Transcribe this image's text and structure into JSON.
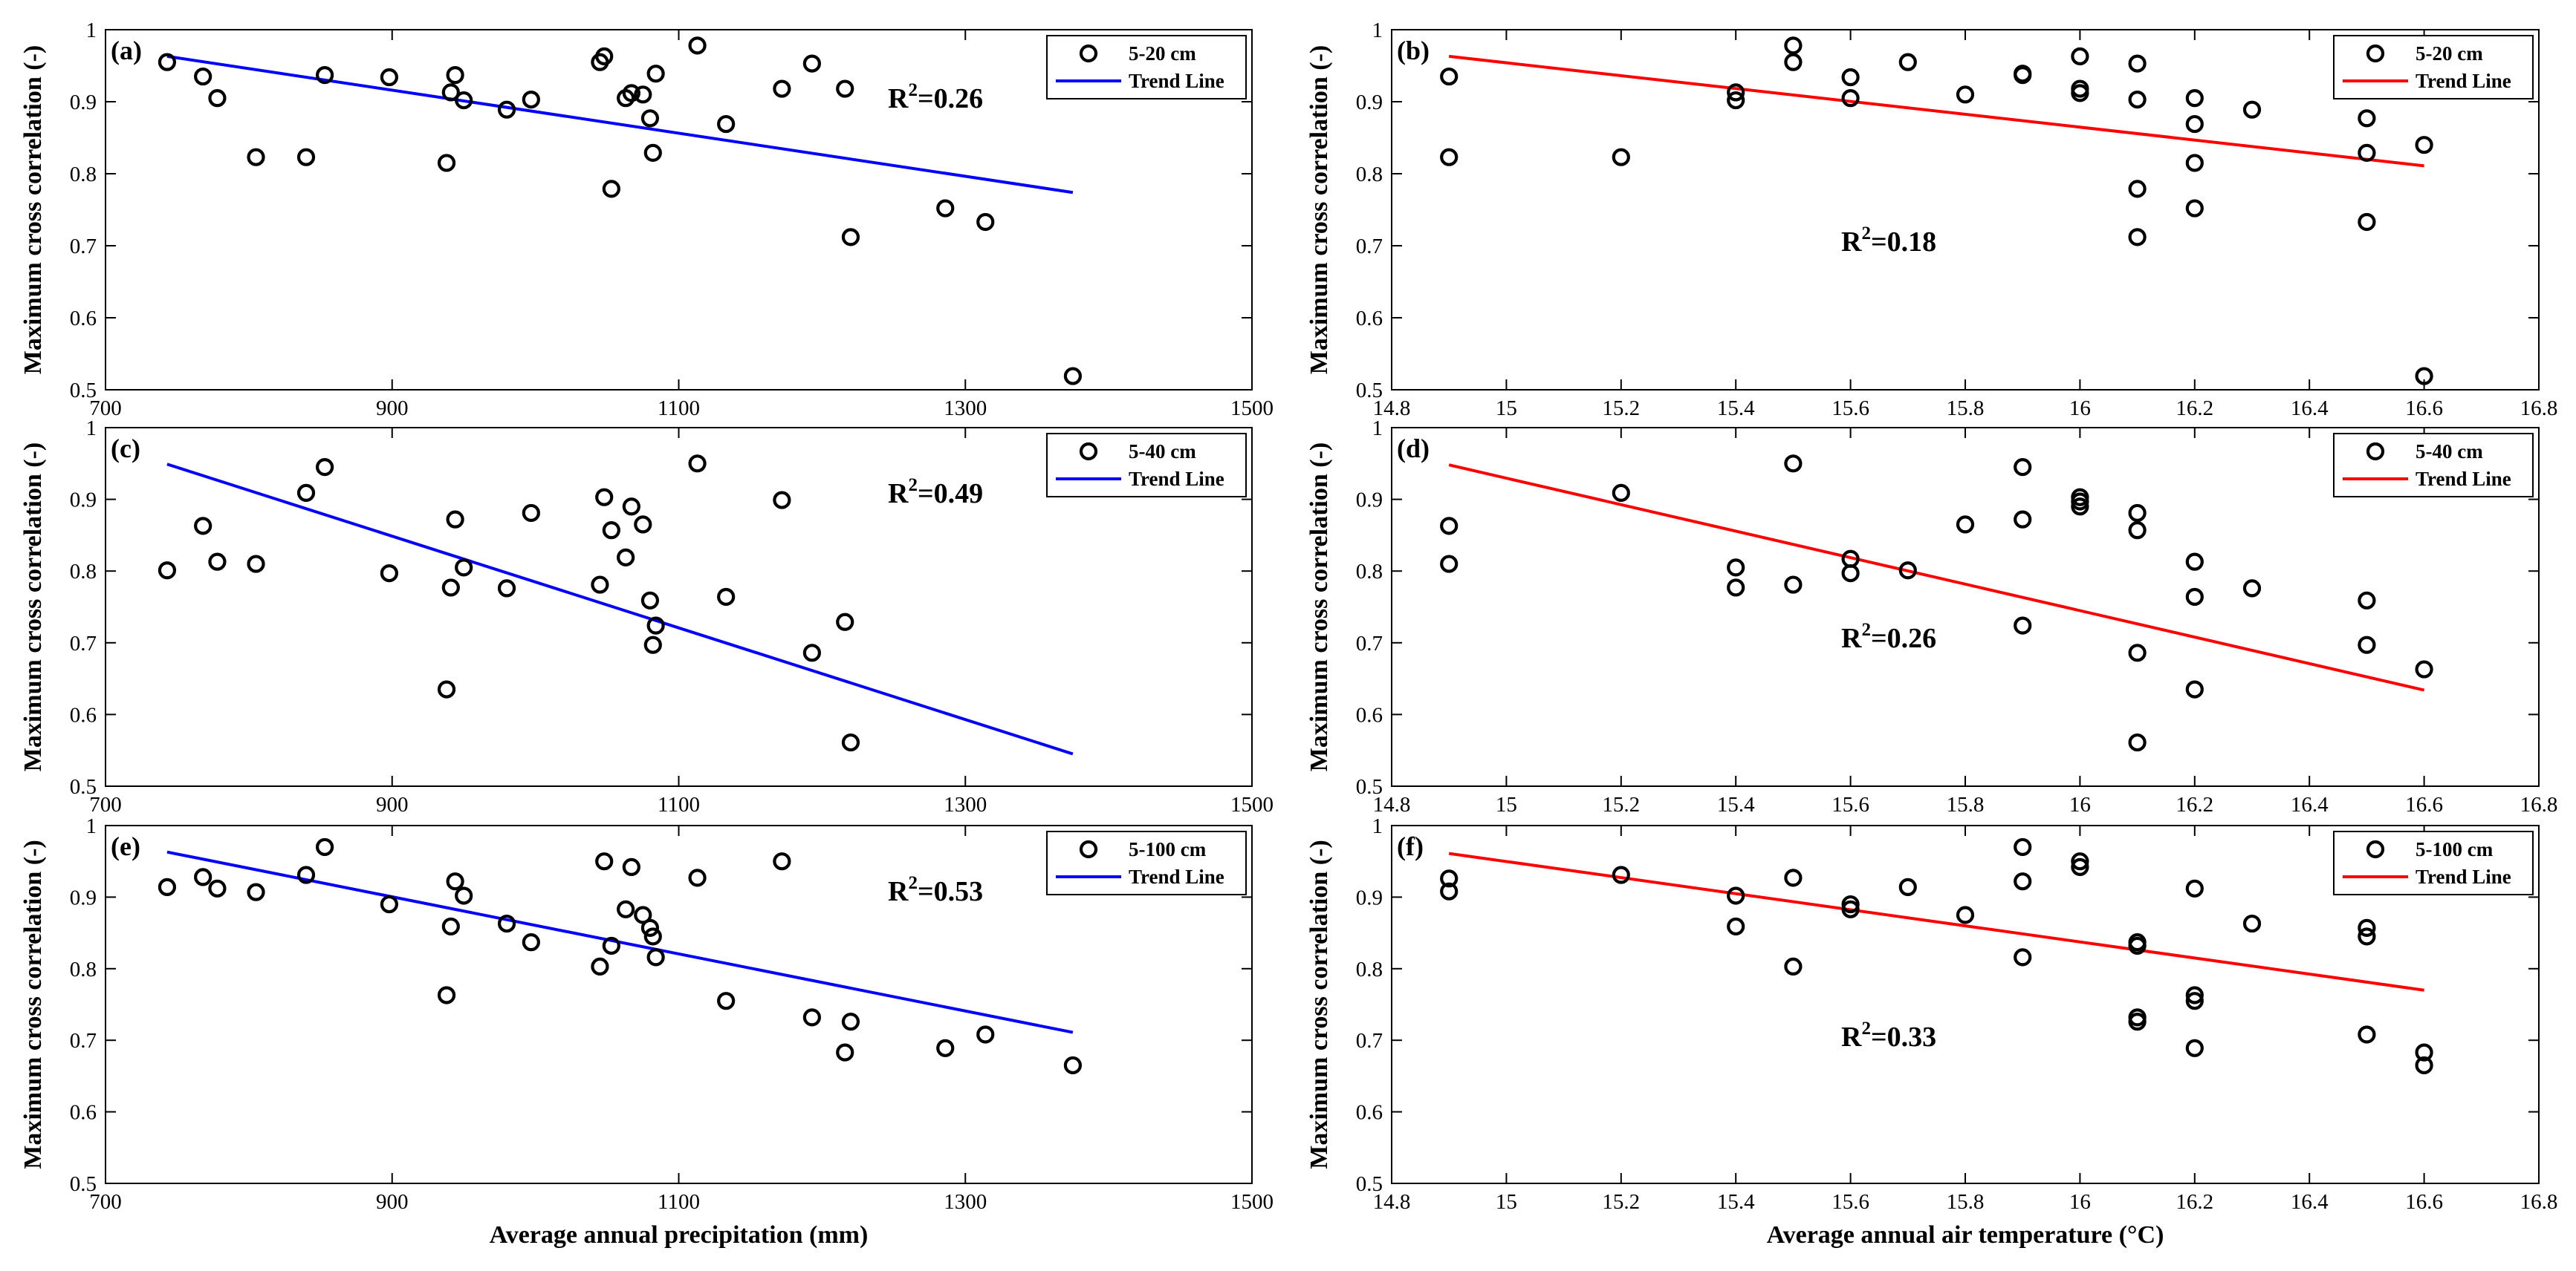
{
  "chart_data": [
    {
      "type": "scatter",
      "panel_label": "(a)",
      "xlabel": "",
      "ylabel": "Maximum cross correlation (-)",
      "xlim": [
        700,
        1500
      ],
      "ylim": [
        0.5,
        1
      ],
      "xticks": [
        "700",
        "900",
        "1100",
        "1300",
        "1500"
      ],
      "yticks": [
        "0.5",
        "0.6",
        "0.7",
        "0.8",
        "0.9",
        "1"
      ],
      "legend": {
        "points": "5-20 cm",
        "line": "Trend Line"
      },
      "r2_base": "R",
      "r2_exp": "2",
      "r2_value": "=0.26",
      "trend_color": "#0000ff",
      "trend_line": [
        [
          743,
          0.963
        ],
        [
          1375,
          0.774
        ]
      ],
      "points": [
        [
          743,
          0.955
        ],
        [
          768,
          0.935
        ],
        [
          778,
          0.905
        ],
        [
          805,
          0.823
        ],
        [
          840,
          0.823
        ],
        [
          853,
          0.937
        ],
        [
          898,
          0.934
        ],
        [
          938,
          0.815
        ],
        [
          941,
          0.913
        ],
        [
          944,
          0.937
        ],
        [
          950,
          0.902
        ],
        [
          980,
          0.889
        ],
        [
          997,
          0.903
        ],
        [
          1045,
          0.955
        ],
        [
          1048,
          0.963
        ],
        [
          1053,
          0.779
        ],
        [
          1063,
          0.905
        ],
        [
          1067,
          0.912
        ],
        [
          1075,
          0.91
        ],
        [
          1080,
          0.877
        ],
        [
          1082,
          0.829
        ],
        [
          1084,
          0.939
        ],
        [
          1113,
          0.978
        ],
        [
          1133,
          0.869
        ],
        [
          1172,
          0.918
        ],
        [
          1193,
          0.953
        ],
        [
          1216,
          0.918
        ],
        [
          1220,
          0.712
        ],
        [
          1286,
          0.752
        ],
        [
          1314,
          0.733
        ],
        [
          1375,
          0.519
        ]
      ]
    },
    {
      "type": "scatter",
      "panel_label": "(b)",
      "xlabel": "",
      "ylabel": "Maximum cross correlation (-)",
      "xlim": [
        14.8,
        16.8
      ],
      "ylim": [
        0.5,
        1
      ],
      "xticks": [
        "14.8",
        "15",
        "15.2",
        "15.4",
        "15.6",
        "15.8",
        "16",
        "16.2",
        "16.4",
        "16.6",
        "16.8"
      ],
      "yticks": [
        "0.5",
        "0.6",
        "0.7",
        "0.8",
        "0.9",
        "1"
      ],
      "legend": {
        "points": "5-20 cm",
        "line": "Trend Line"
      },
      "r2_base": "R",
      "r2_exp": "2",
      "r2_value": "=0.18",
      "trend_color": "#ff0000",
      "trend_line": [
        [
          14.9,
          0.963
        ],
        [
          16.6,
          0.811
        ]
      ],
      "points": [
        [
          14.9,
          0.935
        ],
        [
          14.9,
          0.823
        ],
        [
          15.2,
          0.823
        ],
        [
          15.4,
          0.913
        ],
        [
          15.4,
          0.902
        ],
        [
          15.5,
          0.978
        ],
        [
          15.5,
          0.955
        ],
        [
          15.6,
          0.934
        ],
        [
          15.6,
          0.905
        ],
        [
          15.7,
          0.955
        ],
        [
          15.8,
          0.91
        ],
        [
          15.9,
          0.939
        ],
        [
          15.9,
          0.937
        ],
        [
          16.0,
          0.963
        ],
        [
          16.0,
          0.918
        ],
        [
          16.0,
          0.912
        ],
        [
          16.1,
          0.953
        ],
        [
          16.1,
          0.903
        ],
        [
          16.1,
          0.779
        ],
        [
          16.1,
          0.712
        ],
        [
          16.2,
          0.905
        ],
        [
          16.2,
          0.869
        ],
        [
          16.2,
          0.815
        ],
        [
          16.2,
          0.752
        ],
        [
          16.3,
          0.889
        ],
        [
          16.5,
          0.877
        ],
        [
          16.5,
          0.829
        ],
        [
          16.5,
          0.733
        ],
        [
          16.6,
          0.84
        ],
        [
          16.6,
          0.519
        ]
      ]
    },
    {
      "type": "scatter",
      "panel_label": "(c)",
      "xlabel": "",
      "ylabel": "Maximum cross correlation (-)",
      "xlim": [
        700,
        1500
      ],
      "ylim": [
        0.5,
        1
      ],
      "xticks": [
        "700",
        "900",
        "1100",
        "1300",
        "1500"
      ],
      "yticks": [
        "0.5",
        "0.6",
        "0.7",
        "0.8",
        "0.9",
        "1"
      ],
      "legend": {
        "points": "5-40 cm",
        "line": "Trend Line"
      },
      "r2_base": "R",
      "r2_exp": "2",
      "r2_value": "=0.49",
      "trend_color": "#0000ff",
      "trend_line": [
        [
          743,
          0.949
        ],
        [
          1375,
          0.545
        ]
      ],
      "points": [
        [
          743,
          0.801
        ],
        [
          768,
          0.863
        ],
        [
          778,
          0.813
        ],
        [
          805,
          0.81
        ],
        [
          840,
          0.909
        ],
        [
          853,
          0.945
        ],
        [
          898,
          0.797
        ],
        [
          938,
          0.635
        ],
        [
          941,
          0.777
        ],
        [
          944,
          0.872
        ],
        [
          950,
          0.805
        ],
        [
          980,
          0.776
        ],
        [
          997,
          0.881
        ],
        [
          1045,
          0.781
        ],
        [
          1048,
          0.903
        ],
        [
          1053,
          0.857
        ],
        [
          1063,
          0.819
        ],
        [
          1067,
          0.89
        ],
        [
          1075,
          0.865
        ],
        [
          1080,
          0.759
        ],
        [
          1082,
          0.697
        ],
        [
          1084,
          0.724
        ],
        [
          1113,
          0.95
        ],
        [
          1133,
          0.764
        ],
        [
          1172,
          0.899
        ],
        [
          1193,
          0.686
        ],
        [
          1216,
          0.729
        ],
        [
          1220,
          0.561
        ]
      ]
    },
    {
      "type": "scatter",
      "panel_label": "(d)",
      "xlabel": "",
      "ylabel": "Maximum cross correlation (-)",
      "xlim": [
        14.8,
        16.8
      ],
      "ylim": [
        0.5,
        1
      ],
      "xticks": [
        "14.8",
        "15",
        "15.2",
        "15.4",
        "15.6",
        "15.8",
        "16",
        "16.2",
        "16.4",
        "16.6",
        "16.8"
      ],
      "yticks": [
        "0.5",
        "0.6",
        "0.7",
        "0.8",
        "0.9",
        "1"
      ],
      "legend": {
        "points": "5-40 cm",
        "line": "Trend Line"
      },
      "r2_base": "R",
      "r2_exp": "2",
      "r2_value": "=0.26",
      "trend_color": "#ff0000",
      "trend_line": [
        [
          14.9,
          0.948
        ],
        [
          16.6,
          0.634
        ]
      ],
      "points": [
        [
          14.9,
          0.863
        ],
        [
          14.9,
          0.81
        ],
        [
          15.2,
          0.909
        ],
        [
          15.4,
          0.805
        ],
        [
          15.4,
          0.777
        ],
        [
          15.5,
          0.95
        ],
        [
          15.5,
          0.781
        ],
        [
          15.6,
          0.817
        ],
        [
          15.6,
          0.797
        ],
        [
          15.7,
          0.801
        ],
        [
          15.8,
          0.865
        ],
        [
          15.9,
          0.945
        ],
        [
          15.9,
          0.872
        ],
        [
          15.9,
          0.724
        ],
        [
          16.0,
          0.903
        ],
        [
          16.0,
          0.897
        ],
        [
          16.0,
          0.89
        ],
        [
          16.1,
          0.881
        ],
        [
          16.1,
          0.857
        ],
        [
          16.1,
          0.686
        ],
        [
          16.1,
          0.561
        ],
        [
          16.2,
          0.813
        ],
        [
          16.2,
          0.764
        ],
        [
          16.2,
          0.635
        ],
        [
          16.3,
          0.776
        ],
        [
          16.5,
          0.759
        ],
        [
          16.5,
          0.697
        ],
        [
          16.6,
          0.663
        ]
      ]
    },
    {
      "type": "scatter",
      "panel_label": "(e)",
      "xlabel": "Average annual precipitation (mm)",
      "ylabel": "Maximum cross correlation (-)",
      "xlim": [
        700,
        1500
      ],
      "ylim": [
        0.5,
        1
      ],
      "xticks": [
        "700",
        "900",
        "1100",
        "1300",
        "1500"
      ],
      "yticks": [
        "0.5",
        "0.6",
        "0.7",
        "0.8",
        "0.9",
        "1"
      ],
      "legend": {
        "points": "5-100 cm",
        "line": "Trend Line"
      },
      "r2_base": "R",
      "r2_exp": "2",
      "r2_value": "=0.53",
      "trend_color": "#0000ff",
      "trend_line": [
        [
          743,
          0.963
        ],
        [
          1375,
          0.711
        ]
      ],
      "points": [
        [
          743,
          0.914
        ],
        [
          768,
          0.928
        ],
        [
          778,
          0.912
        ],
        [
          805,
          0.907
        ],
        [
          840,
          0.931
        ],
        [
          853,
          0.97
        ],
        [
          898,
          0.89
        ],
        [
          938,
          0.763
        ],
        [
          941,
          0.859
        ],
        [
          944,
          0.922
        ],
        [
          950,
          0.902
        ],
        [
          980,
          0.863
        ],
        [
          997,
          0.837
        ],
        [
          1045,
          0.803
        ],
        [
          1048,
          0.95
        ],
        [
          1053,
          0.832
        ],
        [
          1063,
          0.883
        ],
        [
          1067,
          0.942
        ],
        [
          1075,
          0.875
        ],
        [
          1080,
          0.857
        ],
        [
          1082,
          0.845
        ],
        [
          1084,
          0.816
        ],
        [
          1113,
          0.927
        ],
        [
          1133,
          0.755
        ],
        [
          1172,
          0.95
        ],
        [
          1193,
          0.732
        ],
        [
          1216,
          0.683
        ],
        [
          1220,
          0.726
        ],
        [
          1286,
          0.689
        ],
        [
          1314,
          0.708
        ],
        [
          1375,
          0.665
        ]
      ]
    },
    {
      "type": "scatter",
      "panel_label": "(f)",
      "xlabel": "Average annual air temperature (°C)",
      "ylabel": "Maximum cross correlation (-)",
      "xlim": [
        14.8,
        16.8
      ],
      "ylim": [
        0.5,
        1
      ],
      "xticks": [
        "14.8",
        "15",
        "15.2",
        "15.4",
        "15.6",
        "15.8",
        "16",
        "16.2",
        "16.4",
        "16.6",
        "16.8"
      ],
      "yticks": [
        "0.5",
        "0.6",
        "0.7",
        "0.8",
        "0.9",
        "1"
      ],
      "legend": {
        "points": "5-100 cm",
        "line": "Trend Line"
      },
      "r2_base": "R",
      "r2_exp": "2",
      "r2_value": "=0.33",
      "trend_color": "#ff0000",
      "trend_line": [
        [
          14.9,
          0.961
        ],
        [
          16.6,
          0.77
        ]
      ],
      "points": [
        [
          14.9,
          0.926
        ],
        [
          14.9,
          0.908
        ],
        [
          15.2,
          0.931
        ],
        [
          15.4,
          0.902
        ],
        [
          15.4,
          0.859
        ],
        [
          15.5,
          0.927
        ],
        [
          15.5,
          0.803
        ],
        [
          15.6,
          0.89
        ],
        [
          15.6,
          0.883
        ],
        [
          15.7,
          0.914
        ],
        [
          15.8,
          0.875
        ],
        [
          15.9,
          0.97
        ],
        [
          15.9,
          0.922
        ],
        [
          15.9,
          0.816
        ],
        [
          16.0,
          0.95
        ],
        [
          16.0,
          0.942
        ],
        [
          16.1,
          0.837
        ],
        [
          16.1,
          0.832
        ],
        [
          16.1,
          0.732
        ],
        [
          16.1,
          0.726
        ],
        [
          16.2,
          0.912
        ],
        [
          16.2,
          0.763
        ],
        [
          16.2,
          0.755
        ],
        [
          16.2,
          0.689
        ],
        [
          16.3,
          0.863
        ],
        [
          16.5,
          0.857
        ],
        [
          16.5,
          0.845
        ],
        [
          16.5,
          0.708
        ],
        [
          16.6,
          0.683
        ],
        [
          16.6,
          0.665
        ]
      ]
    }
  ]
}
